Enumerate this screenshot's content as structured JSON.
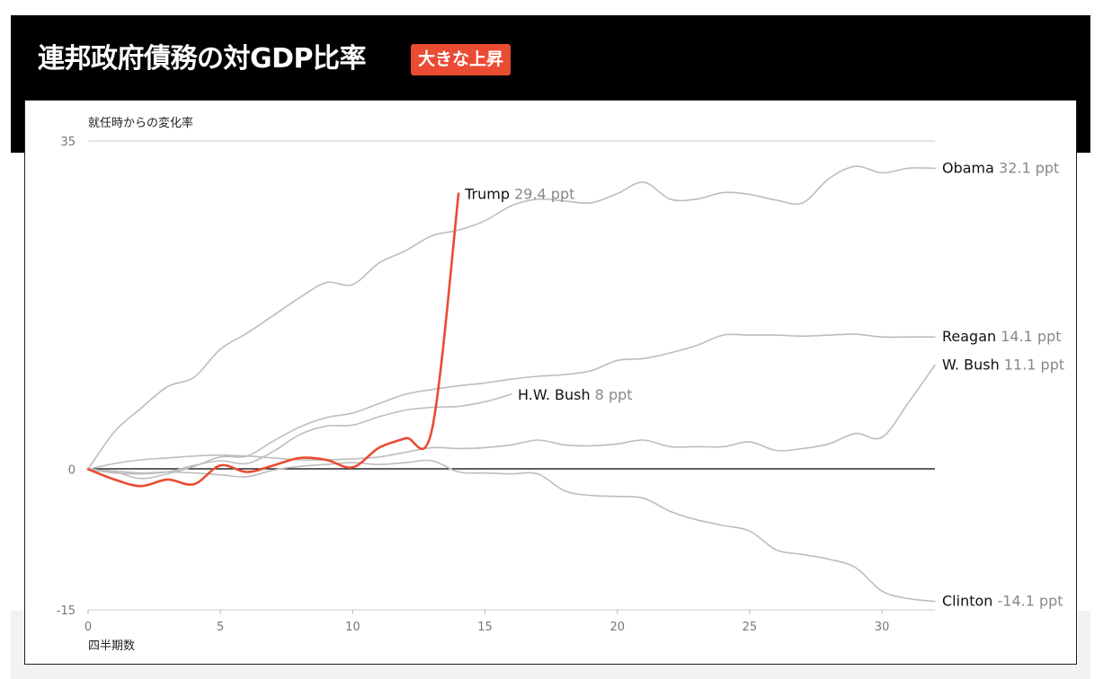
{
  "header": {
    "title": "連邦政府債務の対GDP比率",
    "badge": "大きな上昇"
  },
  "colors": {
    "highlight": "#ea4b33",
    "series": "#bdbdbd",
    "zero_line": "#000000",
    "grid": "#cccccc",
    "header_bg": "#000000"
  },
  "chart_data": {
    "type": "line",
    "title": "連邦政府債務の対GDP比率",
    "ylabel": "就任時からの変化率",
    "xlabel": "四半期数",
    "xlim": [
      0,
      32
    ],
    "ylim": [
      -15,
      35
    ],
    "x_ticks": [
      0,
      5,
      10,
      15,
      20,
      25,
      30
    ],
    "y_ticks": [
      35,
      0,
      -15
    ],
    "grid": "horizontal at top tick",
    "series": [
      {
        "name": "Obama",
        "label_value": "32.1 ppt",
        "highlight": false,
        "x": [
          0,
          1,
          2,
          3,
          4,
          5,
          6,
          7,
          8,
          9,
          10,
          11,
          12,
          13,
          14,
          15,
          16,
          17,
          18,
          19,
          20,
          21,
          22,
          23,
          24,
          25,
          26,
          27,
          28,
          29,
          30,
          31,
          32
        ],
        "values": [
          0,
          4,
          6.5,
          8.8,
          9.8,
          12.8,
          14.5,
          16.4,
          18.3,
          19.9,
          19.7,
          22,
          23.3,
          24.9,
          25.5,
          26.5,
          28.1,
          28.8,
          28.6,
          28.4,
          29.4,
          30.6,
          28.8,
          28.8,
          29.5,
          29.3,
          28.7,
          28.4,
          31,
          32.3,
          31.6,
          32.1,
          32.1
        ],
        "label_anchor": "right"
      },
      {
        "name": "Reagan",
        "label_value": "14.1 ppt",
        "highlight": false,
        "x": [
          0,
          1,
          2,
          3,
          4,
          5,
          6,
          7,
          8,
          9,
          10,
          11,
          12,
          13,
          14,
          15,
          16,
          17,
          18,
          19,
          20,
          21,
          22,
          23,
          24,
          25,
          26,
          27,
          28,
          29,
          30,
          31,
          32
        ],
        "values": [
          0,
          -0.3,
          -1,
          -0.5,
          0.3,
          1.3,
          1.4,
          3,
          4.5,
          5.5,
          6,
          7,
          8,
          8.5,
          8.9,
          9.2,
          9.6,
          9.9,
          10.1,
          10.5,
          11.6,
          11.8,
          12.4,
          13.2,
          14.3,
          14.3,
          14.3,
          14.2,
          14.3,
          14.4,
          14.1,
          14.1,
          14.1
        ],
        "label_anchor": "right"
      },
      {
        "name": "H.W. Bush",
        "label_value": "8 ppt",
        "highlight": false,
        "x": [
          0,
          1,
          2,
          3,
          4,
          5,
          6,
          7,
          8,
          9,
          10,
          11,
          12,
          13,
          14,
          15,
          16
        ],
        "values": [
          0,
          -0.4,
          -0.5,
          -0.3,
          0.4,
          0.9,
          0.6,
          1.9,
          3.7,
          4.6,
          4.7,
          5.6,
          6.3,
          6.6,
          6.7,
          7.2,
          8
        ],
        "label_anchor": "end"
      },
      {
        "name": "W. Bush",
        "label_value": "11.1 ppt",
        "highlight": false,
        "x": [
          0,
          1,
          2,
          3,
          4,
          5,
          6,
          7,
          8,
          9,
          10,
          11,
          12,
          13,
          14,
          15,
          16,
          17,
          18,
          19,
          20,
          21,
          22,
          23,
          24,
          25,
          26,
          27,
          28,
          29,
          30,
          31,
          32
        ],
        "values": [
          0,
          0.6,
          1,
          1.2,
          1.4,
          1.5,
          1.4,
          1.2,
          1,
          1,
          1.1,
          1.3,
          1.8,
          2.3,
          2.2,
          2.3,
          2.6,
          3.1,
          2.6,
          2.5,
          2.7,
          3.1,
          2.4,
          2.4,
          2.4,
          2.9,
          2,
          2.2,
          2.7,
          3.8,
          3.4,
          7.1,
          11.1
        ],
        "label_anchor": "right"
      },
      {
        "name": "Clinton",
        "label_value": "-14.1 ppt",
        "highlight": false,
        "x": [
          0,
          1,
          2,
          3,
          4,
          5,
          6,
          7,
          8,
          9,
          10,
          11,
          12,
          13,
          14,
          15,
          16,
          17,
          18,
          19,
          20,
          21,
          22,
          23,
          24,
          25,
          26,
          27,
          28,
          29,
          30,
          31,
          32
        ],
        "values": [
          0,
          -0.2,
          -0.4,
          -0.3,
          -0.4,
          -0.6,
          -0.8,
          -0.1,
          0.3,
          0.5,
          0.7,
          0.5,
          0.7,
          0.9,
          -0.3,
          -0.4,
          -0.5,
          -0.5,
          -2.3,
          -2.8,
          -2.9,
          -3.1,
          -4.5,
          -5.4,
          -6,
          -6.6,
          -8.6,
          -9.1,
          -9.6,
          -10.5,
          -13,
          -13.8,
          -14.1
        ],
        "label_anchor": "right"
      },
      {
        "name": "Trump",
        "label_value": "29.4 ppt",
        "highlight": true,
        "x": [
          0,
          1,
          2,
          3,
          4,
          5,
          6,
          7,
          8,
          9,
          10,
          11,
          12,
          13,
          14
        ],
        "values": [
          0,
          -1.1,
          -1.8,
          -1.1,
          -1.6,
          0.4,
          -0.3,
          0.4,
          1.2,
          1,
          0.2,
          2.3,
          3.3,
          4.3,
          29.4
        ],
        "label_anchor": "end"
      }
    ]
  }
}
